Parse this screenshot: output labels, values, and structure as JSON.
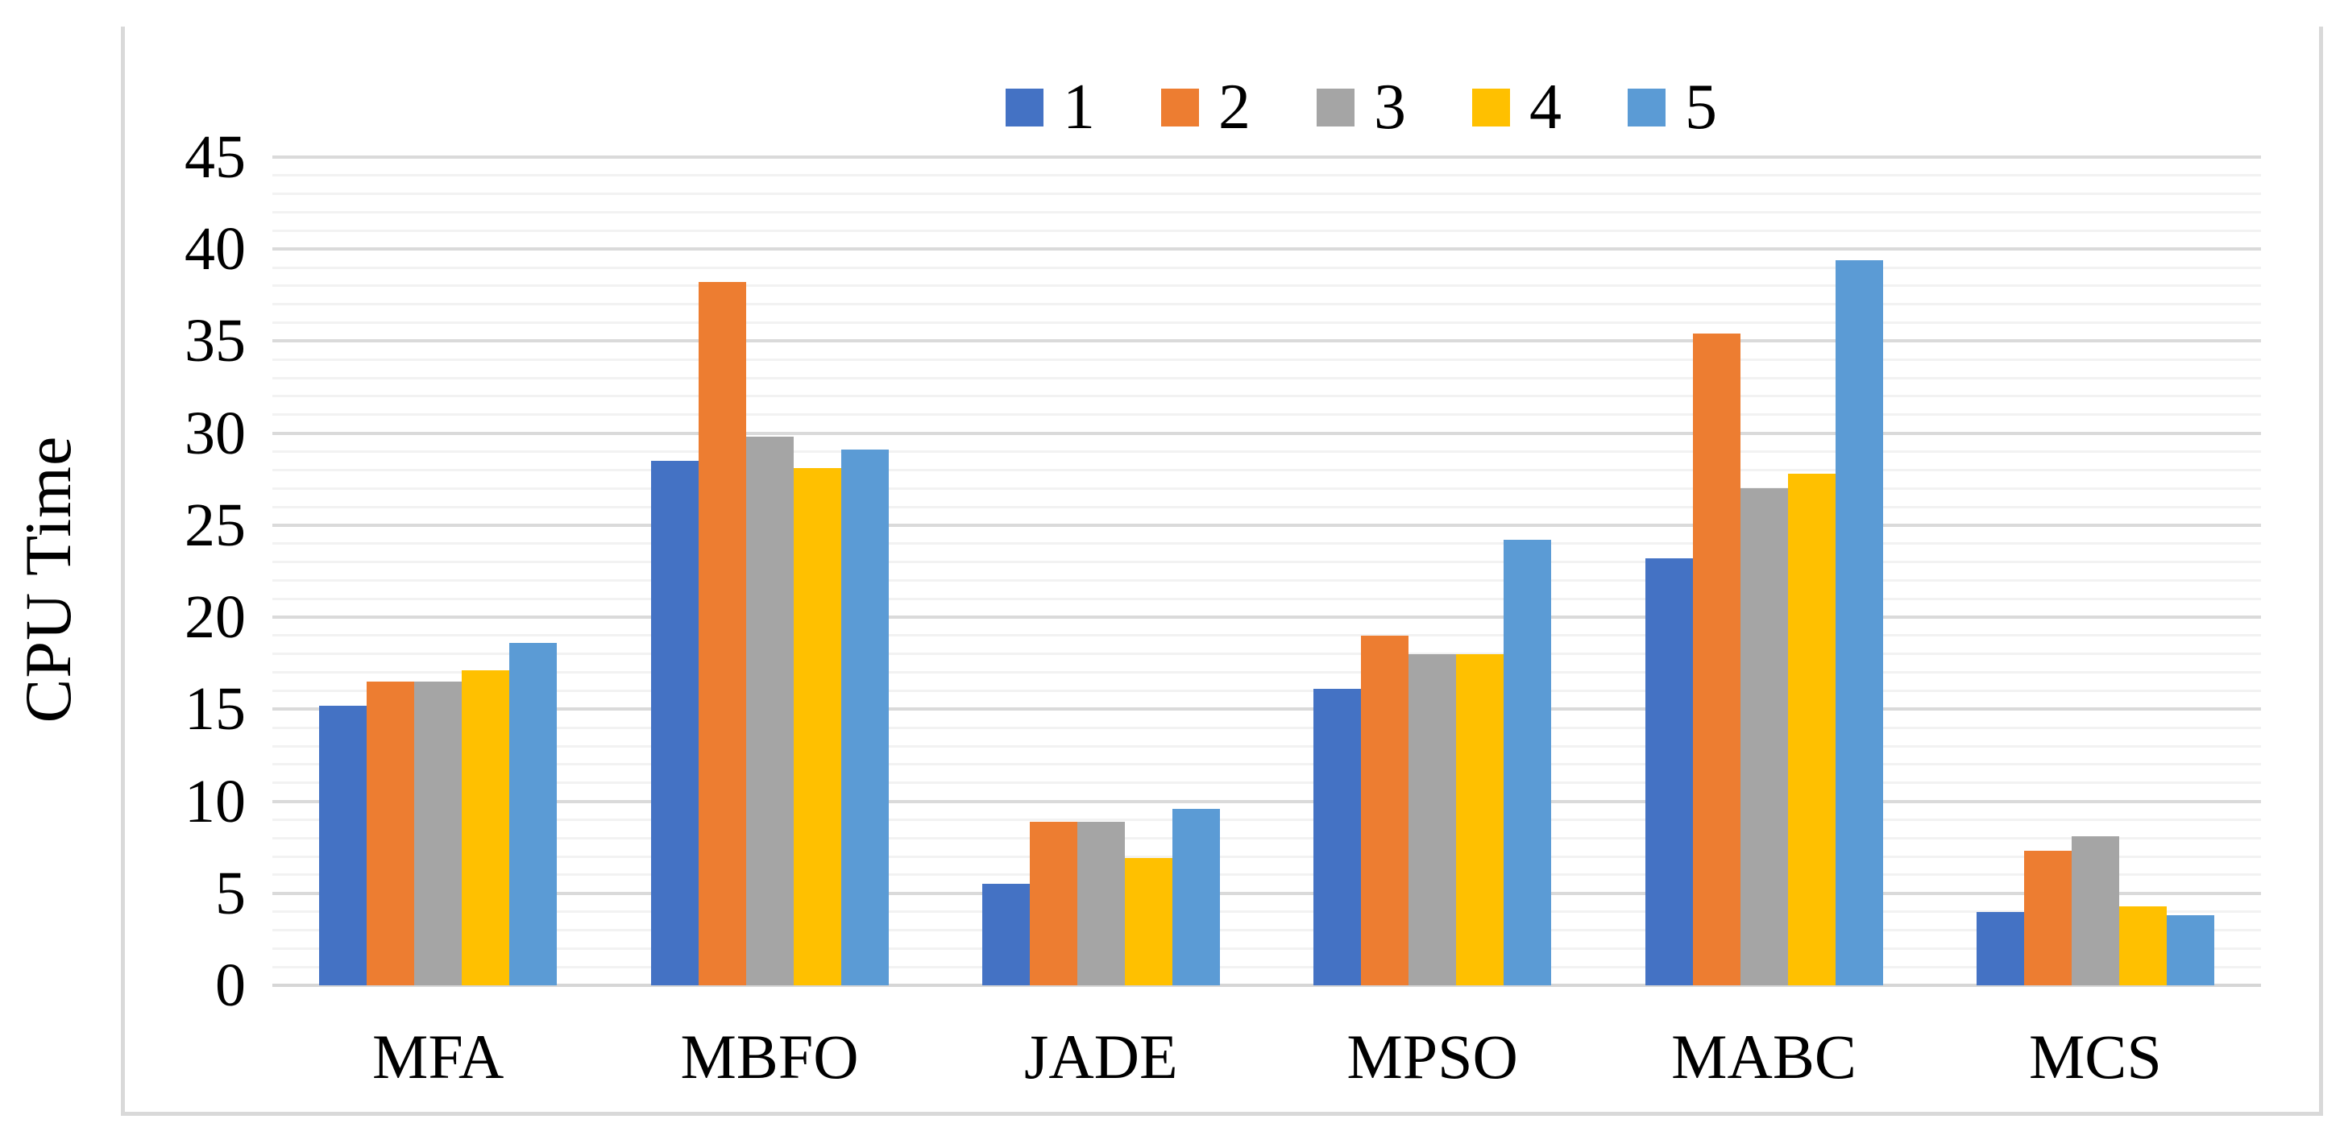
{
  "figure": {
    "type_label": "grouped-bar-chart-figure"
  },
  "chart_data": {
    "type": "bar",
    "title": "",
    "xlabel": "",
    "ylabel": "CPU Time",
    "categories": [
      "MFA",
      "MBFO",
      "JADE",
      "MPSO",
      "MABC",
      "MCS"
    ],
    "series": [
      {
        "name": "1",
        "color": "#4472C4",
        "values": [
          15.2,
          28.5,
          5.5,
          16.1,
          23.2,
          4.0
        ]
      },
      {
        "name": "2",
        "color": "#ED7D31",
        "values": [
          16.5,
          38.2,
          8.9,
          19.0,
          35.4,
          7.3
        ]
      },
      {
        "name": "3",
        "color": "#A5A5A5",
        "values": [
          16.5,
          29.8,
          8.9,
          18.0,
          27.0,
          8.1
        ]
      },
      {
        "name": "4",
        "color": "#FFC000",
        "values": [
          17.1,
          28.1,
          6.9,
          18.0,
          27.8,
          4.3
        ]
      },
      {
        "name": "5",
        "color": "#5B9BD5",
        "values": [
          18.6,
          29.1,
          9.6,
          24.2,
          39.4,
          3.8
        ]
      }
    ],
    "ylim": [
      0,
      45
    ],
    "ytick_labels": [
      "0",
      "5",
      "10",
      "15",
      "20",
      "25",
      "30",
      "35",
      "40",
      "45"
    ],
    "major_unit": 5,
    "minor_unit": 1,
    "grid": "horizontal-major-and-minor",
    "legend_position": "top-center",
    "colors": {
      "major_gridline": "#DADADA",
      "minor_gridline": "#F2F2F2",
      "frame_border": "#D9D9D9",
      "text": "#000000",
      "background": "#FFFFFF"
    }
  }
}
